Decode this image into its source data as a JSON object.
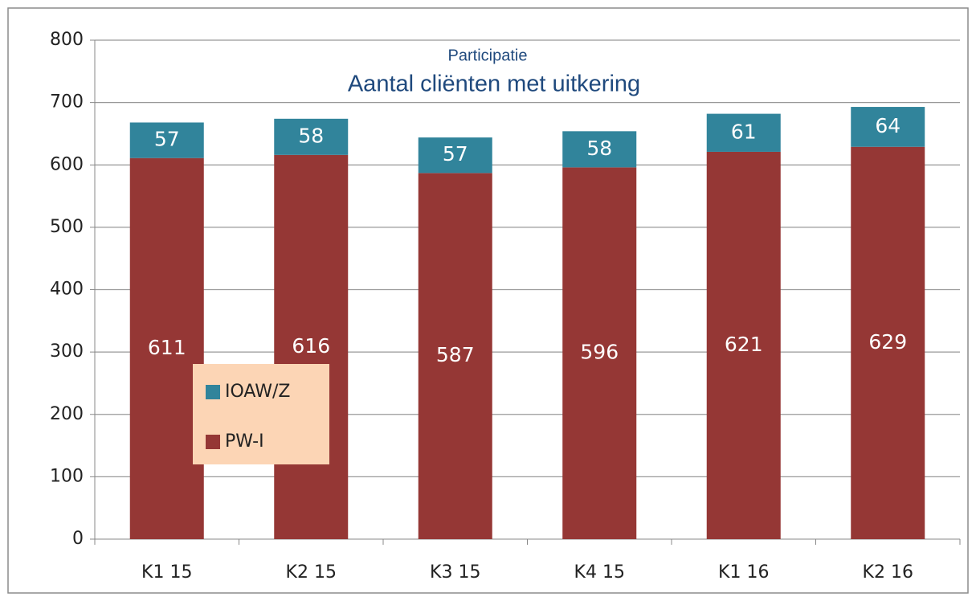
{
  "chart_data": {
    "type": "stacked_bar",
    "title": "Aantal cliënten met uitkering",
    "subtitle": "Participatie",
    "categories": [
      "K1 15",
      "K2 15",
      "K3 15",
      "K4 15",
      "K1 16",
      "K2 16"
    ],
    "series": [
      {
        "name": "PW-I",
        "color": "#953735",
        "values": [
          611,
          616,
          587,
          596,
          621,
          629
        ]
      },
      {
        "name": "IOAW/Z",
        "color": "#31849b",
        "values": [
          57,
          58,
          57,
          58,
          61,
          64
        ]
      }
    ],
    "ylim": [
      0,
      800
    ],
    "yticks": [
      0,
      100,
      200,
      300,
      400,
      500,
      600,
      700,
      800
    ],
    "grid": true,
    "legend": "lower left"
  }
}
